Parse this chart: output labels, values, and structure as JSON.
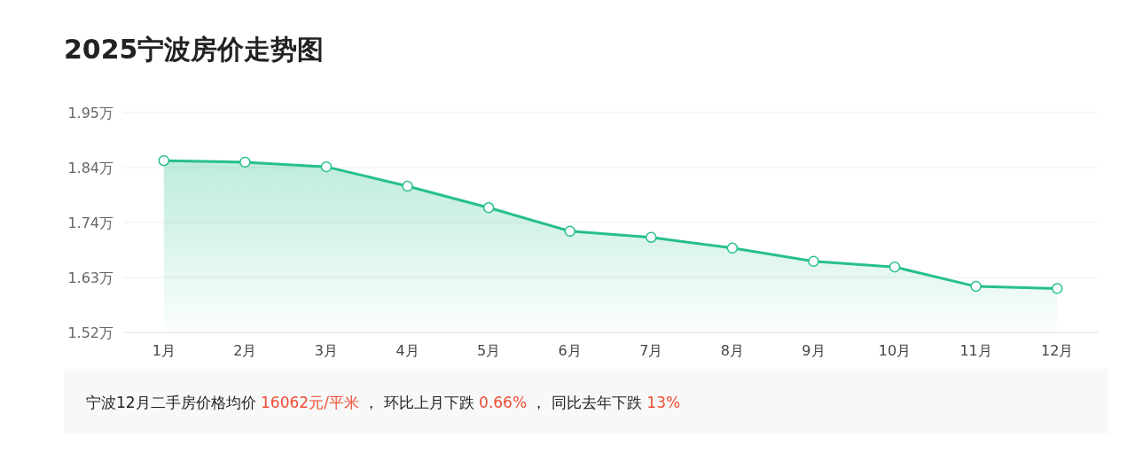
{
  "chart_data": {
    "type": "area",
    "title": "2025宁波房价走势图",
    "categories": [
      "1月",
      "2月",
      "3月",
      "4月",
      "5月",
      "6月",
      "7月",
      "8月",
      "9月",
      "10月",
      "11月",
      "12月"
    ],
    "series": [
      {
        "color": "#27c08a",
        "values": [
          1.856,
          1.853,
          1.844,
          1.806,
          1.764,
          1.718,
          1.706,
          1.685,
          1.659,
          1.648,
          1.61,
          1.606
        ]
      }
    ],
    "ylim": [
      1.52,
      1.95
    ],
    "yticks": [
      {
        "value": 1.52,
        "label": "1.52万"
      },
      {
        "value": 1.6275,
        "label": "1.63万"
      },
      {
        "value": 1.735,
        "label": "1.74万"
      },
      {
        "value": 1.8425,
        "label": "1.84万"
      },
      {
        "value": 1.95,
        "label": "1.95万"
      }
    ],
    "grid": "y",
    "marker": "circle",
    "line_style": "solid",
    "annotations": [
      "宁波12月二手房价格均价 ",
      "16062元/平米",
      " ， 环比上月下跌 ",
      "0.66%",
      " ， 同比去年下跌 ",
      "13%"
    ]
  }
}
